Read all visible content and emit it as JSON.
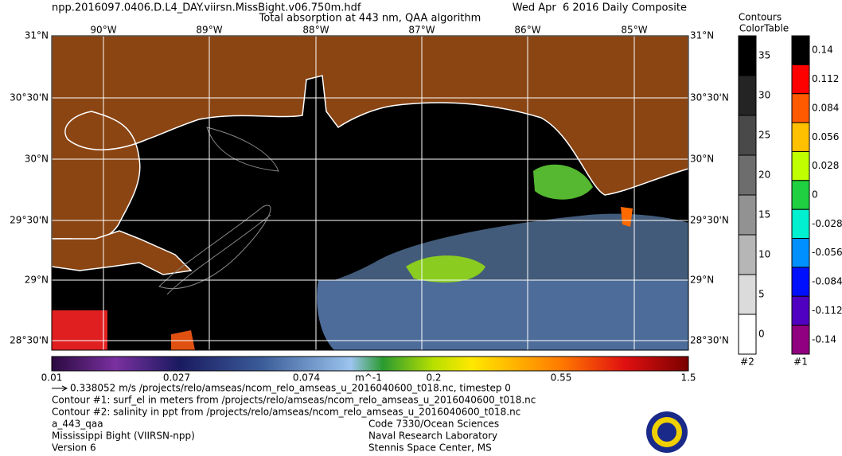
{
  "header": {
    "file": "npp.2016097.0406.D.L4_DAY.viirsn.MissBight.v06.750m.hdf",
    "title": "Total absorption at 443 nm, QAA algorithm",
    "date": "Wed Apr  6 2016 Daily Composite"
  },
  "map": {
    "longitudes": [
      "90°W",
      "89°W",
      "88°W",
      "87°W",
      "86°W",
      "85°W"
    ],
    "latitudes": [
      "31°N",
      "30°30'N",
      "30°N",
      "29°30'N",
      "29°N",
      "28°30'N"
    ]
  },
  "colorbar": {
    "labels": [
      "0.01",
      "0.027",
      "0.074",
      "0.2",
      "0.55",
      "1.5"
    ],
    "unit": "m^-1"
  },
  "footer": {
    "vector": "0.338052 m/s /projects/relo/amseas/ncom_relo_amseas_u_2016040600_t018.nc, timestep 0",
    "contour1": "Contour #1: surf_el in meters from /projects/relo/amseas/ncom_relo_amseas_u_2016040600_t018.nc",
    "contour2": "Contour #2: salinity in ppt from /projects/relo/amseas/ncom_relo_amseas_u_2016040600_t018.nc",
    "product": "a_443_qaa",
    "region": "Mississippi Bight (VIIRSN-npp)",
    "version": "Version 6",
    "code": "Code 7330/Ocean Sciences",
    "lab": "Naval Research Laboratory",
    "place": "Stennis Space Center, MS"
  },
  "legend": {
    "title1": "Contours",
    "title2": "ColorTable",
    "scale2": {
      "labels": [
        "35",
        "30",
        "25",
        "20",
        "15",
        "10",
        "5",
        "0"
      ],
      "name": "#2"
    },
    "scale1": {
      "labels": [
        "0.14",
        "0.112",
        "0.084",
        "0.056",
        "0.028",
        "0",
        "-0.028",
        "-0.056",
        "-0.084",
        "-0.112",
        "-0.14"
      ],
      "name": "#1"
    }
  }
}
